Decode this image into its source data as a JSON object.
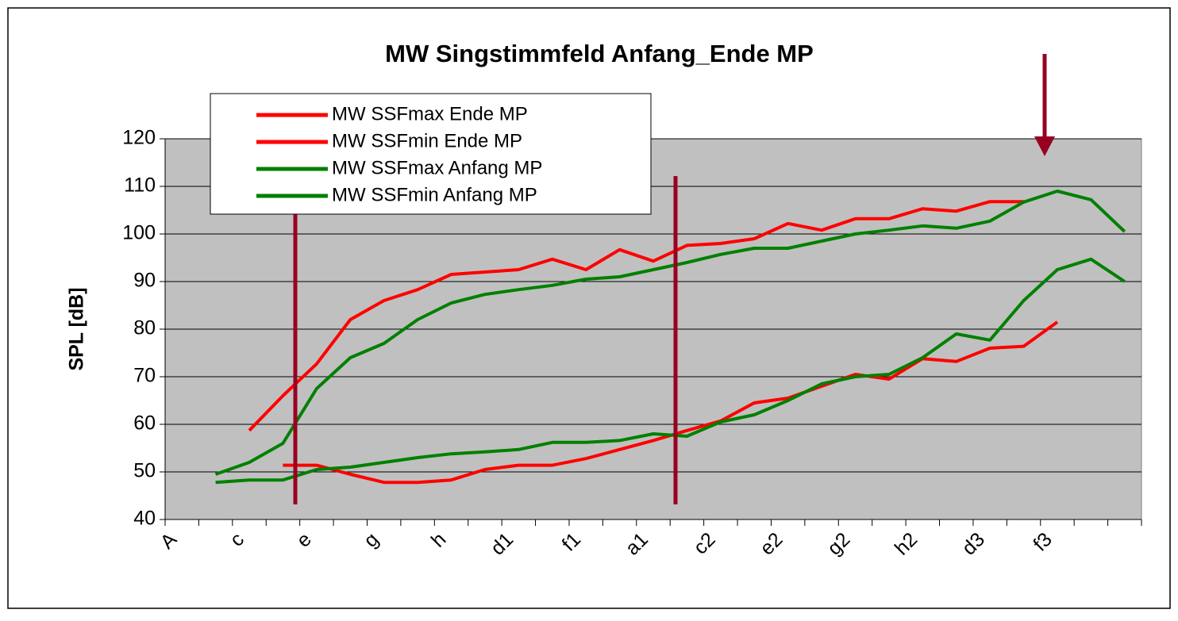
{
  "chart_data": {
    "type": "line",
    "title": "MW Singstimmfeld Anfang_Ende MP",
    "y_label": "SPL [dB]",
    "categories": [
      "A",
      null,
      "c",
      null,
      "e",
      null,
      "g",
      null,
      "h",
      null,
      "d1",
      null,
      "f1",
      null,
      "a1",
      null,
      "c2",
      null,
      "e2",
      null,
      "g2",
      null,
      "h2",
      null,
      "d3",
      null,
      "f3",
      null,
      null
    ],
    "ylim": [
      40,
      120
    ],
    "yticks": [
      40,
      50,
      60,
      70,
      80,
      90,
      100,
      110,
      120
    ],
    "grid": true,
    "legend": "top-left",
    "series": [
      {
        "name": "MW SSFmax Ende MP",
        "color": "#ff0000",
        "values": [
          null,
          null,
          58.7,
          66,
          72.7,
          82,
          86,
          88.3,
          91.5,
          92,
          92.5,
          94.7,
          92.5,
          96.7,
          94.3,
          97.6,
          98,
          99,
          102.2,
          100.8,
          103.2,
          103.2,
          105.3,
          104.8,
          106.8,
          106.8,
          null,
          null,
          null
        ]
      },
      {
        "name": "MW SSFmin Ende MP",
        "color": "#ff0000",
        "values": [
          null,
          null,
          null,
          51.4,
          51.4,
          49.5,
          47.8,
          47.8,
          48.3,
          50.5,
          51.4,
          51.4,
          52.8,
          54.7,
          56.6,
          58.7,
          60.7,
          64.5,
          65.5,
          68,
          70.5,
          69.5,
          73.8,
          73.2,
          76,
          76.4,
          81.5,
          null,
          null
        ]
      },
      {
        "name": "MW SSFmax Anfang MP",
        "color": "#008000",
        "values": [
          null,
          49.5,
          52,
          56,
          67.5,
          74,
          77,
          82,
          85.5,
          87.3,
          88.3,
          89.2,
          90.5,
          91,
          92.5,
          94,
          95.7,
          97,
          97,
          98.5,
          100,
          100.8,
          101.7,
          101.2,
          102.7,
          106.7,
          109,
          107.2,
          100.5
        ]
      },
      {
        "name": "MW SSFmin Anfang MP",
        "color": "#008000",
        "values": [
          null,
          47.8,
          48.3,
          48.3,
          50.5,
          51,
          52,
          53,
          53.8,
          54.2,
          54.7,
          56.2,
          56.2,
          56.6,
          58,
          57.5,
          60.5,
          62,
          65,
          68.5,
          70,
          70.5,
          74,
          79,
          77.7,
          86,
          92.5,
          94.7,
          90
        ]
      }
    ]
  }
}
